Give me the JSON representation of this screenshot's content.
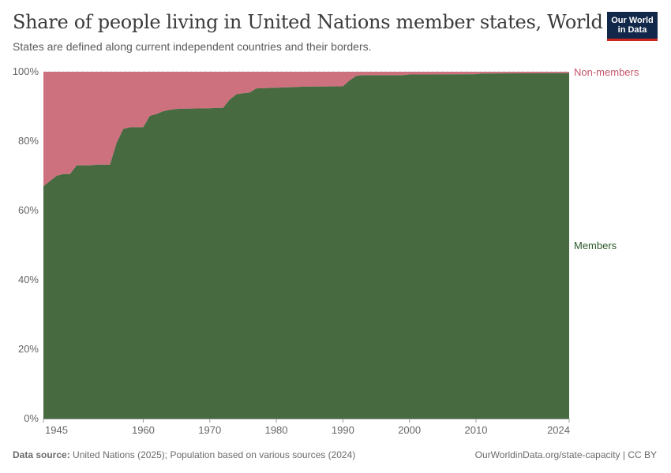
{
  "header": {
    "title": "Share of people living in United Nations member states, World",
    "subtitle": "States are defined along current independent countries and their borders.",
    "logo_line1": "Our World",
    "logo_line2": "in Data"
  },
  "footer": {
    "source_label": "Data source:",
    "source_text": "United Nations (2025); Population based on various sources (2024)",
    "url_text": "OurWorldinData.org/state-capacity | CC BY"
  },
  "colors": {
    "members": "#476a40",
    "non_members": "#ce717f",
    "members_label": "#2c5a2a",
    "non_members_label": "#c7566b",
    "grid": "#dddddd",
    "axis_text": "#666666"
  },
  "chart_data": {
    "type": "area",
    "stacked": true,
    "xlim": [
      1945,
      2024
    ],
    "ylim": [
      0,
      100
    ],
    "yticks": [
      "0%",
      "20%",
      "40%",
      "60%",
      "80%",
      "100%"
    ],
    "xticks": [
      "1945",
      "1960",
      "1970",
      "1980",
      "1990",
      "2000",
      "2010",
      "2024"
    ],
    "x": [
      1945,
      1946,
      1947,
      1948,
      1949,
      1950,
      1951,
      1952,
      1953,
      1954,
      1955,
      1956,
      1957,
      1958,
      1959,
      1960,
      1961,
      1962,
      1963,
      1964,
      1965,
      1970,
      1971,
      1972,
      1973,
      1974,
      1975,
      1976,
      1977,
      1980,
      1983,
      1984,
      1990,
      1991,
      1992,
      1993,
      1994,
      1999,
      2000,
      2002,
      2010,
      2011,
      2024
    ],
    "series": [
      {
        "name": "Members",
        "values": [
          67.0,
          68.5,
          70.0,
          70.5,
          70.5,
          73.0,
          73.0,
          73.0,
          73.2,
          73.2,
          73.2,
          79.5,
          83.5,
          84.0,
          84.0,
          84.0,
          87.3,
          87.8,
          88.6,
          89.0,
          89.3,
          89.5,
          89.6,
          89.6,
          92.0,
          93.5,
          93.8,
          94.0,
          95.2,
          95.4,
          95.6,
          95.7,
          95.8,
          97.5,
          98.8,
          99.0,
          99.0,
          99.0,
          99.2,
          99.2,
          99.3,
          99.5,
          99.6
        ]
      },
      {
        "name": "Non-members",
        "values": [
          33.0,
          31.5,
          30.0,
          29.5,
          29.5,
          27.0,
          27.0,
          27.0,
          26.8,
          26.8,
          26.8,
          20.5,
          16.5,
          16.0,
          16.0,
          16.0,
          12.7,
          12.2,
          11.4,
          11.0,
          10.7,
          10.5,
          10.4,
          10.4,
          8.0,
          6.5,
          6.2,
          6.0,
          4.8,
          4.6,
          4.4,
          4.3,
          4.2,
          2.5,
          1.2,
          1.0,
          1.0,
          1.0,
          0.8,
          0.8,
          0.7,
          0.5,
          0.4
        ]
      }
    ]
  }
}
